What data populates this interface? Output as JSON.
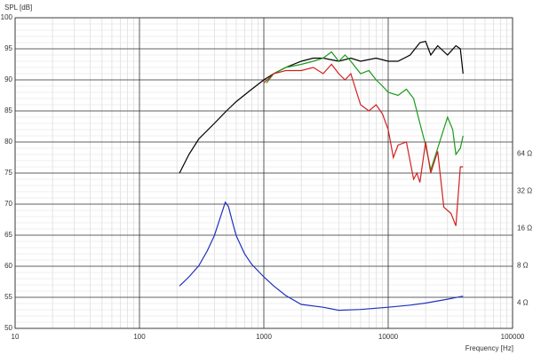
{
  "chart_data": {
    "type": "line",
    "x_label": "Frequency [Hz]",
    "y_label": "SPL [dB]",
    "xscale": "log",
    "xlim": [
      10,
      100000
    ],
    "xticks": [
      10,
      100,
      1000,
      10000,
      100000
    ],
    "ylim": [
      50,
      100
    ],
    "yticks": [
      50,
      55,
      60,
      65,
      70,
      75,
      80,
      85,
      90,
      95,
      100
    ],
    "y2scale": "log",
    "y2lim": [
      2.5,
      800
    ],
    "y2ticks": [
      {
        "value": 4,
        "label": "4 Ω"
      },
      {
        "value": 8,
        "label": "8 Ω"
      },
      {
        "value": 16,
        "label": "16 Ω"
      },
      {
        "value": 32,
        "label": "32 Ω"
      },
      {
        "value": 64,
        "label": "64 Ω"
      }
    ],
    "grid": true,
    "minor_grid": true,
    "series": [
      {
        "color": "#000000",
        "x": [
          210,
          250,
          300,
          400,
          500,
          600,
          800,
          1000,
          1200,
          1500,
          2000,
          2500,
          3000,
          4000,
          5000,
          6000,
          8000,
          10000,
          12000,
          15000,
          18000,
          20000,
          22000,
          25000,
          30000,
          35000,
          38000,
          40000
        ],
        "values": [
          75,
          78,
          80.5,
          83,
          85,
          86.5,
          88.5,
          90,
          91,
          92,
          93,
          93.5,
          93.5,
          93,
          93.5,
          93,
          93.5,
          93,
          93,
          94,
          96,
          96.2,
          94,
          95.5,
          94,
          95.5,
          95,
          91
        ]
      },
      {
        "color": "#1a9a1a",
        "x": [
          1050,
          1200,
          1500,
          2000,
          2500,
          3000,
          3500,
          4000,
          4500,
          5000,
          6000,
          7000,
          8000,
          9000,
          10000,
          12000,
          14000,
          16000,
          18000,
          20000,
          22000,
          25000,
          30000,
          33000,
          35000,
          38000,
          40000
        ],
        "values": [
          89.5,
          91,
          92,
          92.5,
          93,
          93.5,
          94.5,
          93,
          94,
          93,
          91,
          91.5,
          90,
          89,
          88,
          87.5,
          88.5,
          87,
          83,
          79.5,
          75.5,
          79,
          84,
          82,
          78,
          79,
          81
        ]
      },
      {
        "color": "#d42020",
        "x": [
          1000,
          1200,
          1500,
          2000,
          2500,
          3000,
          3500,
          4000,
          4500,
          5000,
          6000,
          7000,
          8000,
          9000,
          10000,
          11000,
          12000,
          14000,
          16000,
          17000,
          18000,
          20000,
          22000,
          25000,
          28000,
          32000,
          35000,
          38000,
          40000
        ],
        "values": [
          89.5,
          91,
          91.5,
          91.5,
          92,
          91,
          92.5,
          91,
          90,
          91,
          86,
          85,
          86,
          84.5,
          82,
          77.5,
          79.5,
          80,
          74,
          75,
          73.5,
          80,
          75,
          78.5,
          69.5,
          68.5,
          66.5,
          76,
          76
        ]
      },
      {
        "color": "#2030c0",
        "axis": "y2",
        "x": [
          210,
          250,
          300,
          350,
          400,
          450,
          490,
          520,
          560,
          600,
          700,
          800,
          1000,
          1200,
          1500,
          2000,
          3000,
          4000,
          6000,
          10000,
          15000,
          20000,
          30000,
          40000
        ],
        "values": [
          5.5,
          6.5,
          8,
          10.5,
          14,
          20,
          26,
          24,
          18,
          14,
          10,
          8.2,
          6.5,
          5.5,
          4.6,
          3.9,
          3.7,
          3.5,
          3.55,
          3.7,
          3.85,
          4.0,
          4.3,
          4.55
        ]
      }
    ]
  }
}
